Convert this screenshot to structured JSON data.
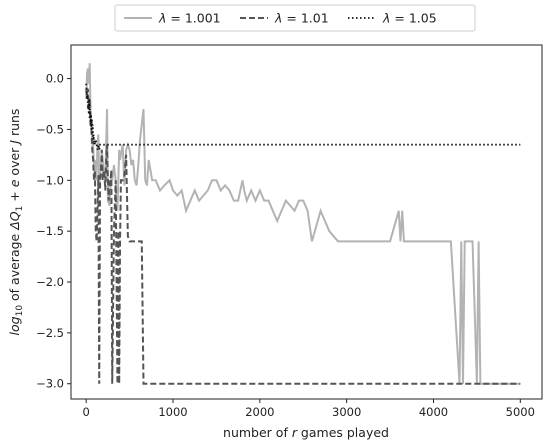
{
  "chart_data": {
    "type": "line",
    "xlabel_parts": [
      "number of ",
      "r",
      " games played"
    ],
    "ylabel_parts": [
      {
        "t": "log",
        "style": "italic"
      },
      {
        "t": "10",
        "style": "sub"
      },
      {
        "t": " of average ",
        "style": "normal"
      },
      {
        "t": "ΔQ",
        "style": "italic"
      },
      {
        "t": "1",
        "style": "sub"
      },
      {
        "t": " + ",
        "style": "normal"
      },
      {
        "t": "e",
        "style": "italic"
      },
      {
        "t": " over ",
        "style": "normal"
      },
      {
        "t": "J",
        "style": "italic"
      },
      {
        "t": " runs",
        "style": "normal"
      }
    ],
    "xlim": [
      -175,
      5250
    ],
    "ylim": [
      -3.15,
      0.33
    ],
    "x_ticks": [
      0,
      1000,
      2000,
      3000,
      4000,
      5000
    ],
    "x_tick_labels": [
      "0",
      "1000",
      "2000",
      "3000",
      "4000",
      "5000"
    ],
    "y_ticks": [
      0.0,
      -0.5,
      -1.0,
      -1.5,
      -2.0,
      -2.5,
      -3.0
    ],
    "y_tick_labels": [
      "0.0",
      "−0.5",
      "−1.0",
      "−1.5",
      "−2.0",
      "−2.5",
      "−3.0"
    ],
    "grid": false,
    "legend_position": "top-center-outside",
    "legend": [
      {
        "series": "s1001",
        "lambda_symbol": "λ",
        "value_text": " = 1.001"
      },
      {
        "series": "s101",
        "lambda_symbol": "λ",
        "value_text": " = 1.01"
      },
      {
        "series": "s105",
        "lambda_symbol": "λ",
        "value_text": " = 1.05"
      }
    ],
    "series": [
      {
        "id": "s1001",
        "style": "solid",
        "color": "#b3b3b3",
        "x": [
          0,
          10,
          20,
          30,
          40,
          50,
          60,
          70,
          75,
          80,
          90,
          100,
          110,
          120,
          130,
          140,
          150,
          160,
          170,
          180,
          200,
          220,
          240,
          250,
          270,
          290,
          300,
          320,
          340,
          350,
          360,
          380,
          390,
          400,
          420,
          440,
          460,
          480,
          500,
          520,
          540,
          560,
          580,
          600,
          620,
          660,
          680,
          700,
          720,
          760,
          800,
          850,
          900,
          960,
          1000,
          1050,
          1100,
          1150,
          1200,
          1250,
          1300,
          1400,
          1450,
          1500,
          1550,
          1600,
          1650,
          1700,
          1750,
          1800,
          1820,
          1850,
          1900,
          1950,
          2000,
          2050,
          2100,
          2150,
          2200,
          2300,
          2400,
          2450,
          2500,
          2550,
          2600,
          2700,
          2750,
          2800,
          2900,
          2950,
          3000,
          3100,
          3200,
          3300,
          3400,
          3500,
          3600,
          3620,
          3640,
          3660,
          3700,
          3800,
          3900,
          4000,
          4100,
          4200,
          4300,
          4320,
          4340,
          4360,
          4380,
          4400,
          4450,
          4500,
          4520,
          4540,
          4560,
          4600,
          4800,
          5000
        ],
        "y": [
          -0.2,
          0.05,
          0.1,
          -0.05,
          0.15,
          -0.3,
          -0.5,
          -0.6,
          -0.7,
          -0.65,
          -0.9,
          -0.8,
          -1.0,
          -0.95,
          -0.65,
          -0.55,
          -1.05,
          -0.95,
          -0.85,
          -0.7,
          -0.9,
          -1.0,
          -0.3,
          -1.2,
          -1.25,
          -0.9,
          -1.0,
          -0.85,
          -1.0,
          -1.2,
          -1.3,
          -0.7,
          -0.8,
          -0.75,
          -0.65,
          -1.05,
          -0.7,
          -0.65,
          -0.7,
          -0.85,
          -0.8,
          -1.0,
          -1.05,
          -0.85,
          -0.6,
          -0.3,
          -1.0,
          -1.05,
          -0.8,
          -1.0,
          -1.0,
          -1.1,
          -1.05,
          -1.0,
          -1.1,
          -1.15,
          -1.1,
          -1.3,
          -1.2,
          -1.1,
          -1.2,
          -1.1,
          -1.0,
          -1.0,
          -1.1,
          -1.05,
          -1.1,
          -1.2,
          -1.2,
          -1.0,
          -1.1,
          -1.2,
          -1.1,
          -1.2,
          -1.1,
          -1.2,
          -1.2,
          -1.3,
          -1.4,
          -1.2,
          -1.3,
          -1.2,
          -1.2,
          -1.3,
          -1.6,
          -1.3,
          -1.4,
          -1.5,
          -1.6,
          -1.6,
          -1.6,
          -1.6,
          -1.6,
          -1.6,
          -1.6,
          -1.6,
          -1.3,
          -1.6,
          -1.3,
          -1.6,
          -1.6,
          -1.6,
          -1.6,
          -1.6,
          -1.6,
          -1.6,
          -3.0,
          -1.6,
          -3.0,
          -1.6,
          -1.6,
          -1.6,
          -1.6,
          -3.0,
          -1.6,
          -3.0,
          -3.0,
          -3.0,
          -3.0,
          -3.0
        ]
      },
      {
        "id": "s101",
        "style": "dashed",
        "color": "#555555",
        "x": [
          0,
          10,
          20,
          30,
          40,
          50,
          60,
          70,
          80,
          90,
          100,
          110,
          120,
          130,
          140,
          150,
          160,
          170,
          180,
          190,
          200,
          210,
          220,
          230,
          240,
          250,
          260,
          270,
          280,
          290,
          300,
          320,
          340,
          360,
          370,
          380,
          390,
          400,
          420,
          440,
          460,
          480,
          500,
          530,
          560,
          580,
          600,
          620,
          640,
          660,
          680,
          700,
          1000,
          2000,
          3000,
          4000,
          5000
        ],
        "y": [
          -0.1,
          -0.2,
          -0.1,
          -0.3,
          -0.2,
          -0.45,
          -0.5,
          -0.7,
          -0.8,
          -1.0,
          -0.9,
          -1.5,
          -1.6,
          -1.3,
          -0.95,
          -3.0,
          -1.0,
          -0.9,
          -0.7,
          -1.0,
          -0.9,
          -0.95,
          -1.1,
          -0.8,
          -0.65,
          -1.0,
          -1.2,
          -1.0,
          -1.0,
          -0.9,
          -3.0,
          -1.5,
          -1.0,
          -3.0,
          -1.5,
          -3.0,
          -1.6,
          -1.0,
          -1.0,
          -0.95,
          -0.75,
          -1.55,
          -1.6,
          -1.6,
          -1.6,
          -1.6,
          -1.6,
          -1.6,
          -1.6,
          -3.0,
          -3.0,
          -3.0,
          -3.0,
          -3.0,
          -3.0,
          -3.0,
          -3.0
        ]
      },
      {
        "id": "s105",
        "style": "dotted",
        "color": "#111111",
        "x": [
          0,
          5,
          10,
          15,
          20,
          25,
          30,
          35,
          40,
          45,
          50,
          55,
          60,
          65,
          70,
          75,
          80,
          85,
          90,
          95,
          100,
          110,
          120,
          130,
          140,
          150,
          160,
          180,
          200,
          5000
        ],
        "y": [
          -0.05,
          -0.1,
          -0.2,
          -0.15,
          -0.3,
          -0.25,
          -0.35,
          -0.2,
          -0.4,
          -0.3,
          -0.45,
          -0.35,
          -0.5,
          -0.4,
          -0.55,
          -0.45,
          -0.6,
          -0.55,
          -0.65,
          -0.6,
          -0.65,
          -0.6,
          -0.65,
          -0.7,
          -0.65,
          -0.7,
          -0.65,
          -0.65,
          -0.65,
          -0.65
        ]
      }
    ]
  }
}
